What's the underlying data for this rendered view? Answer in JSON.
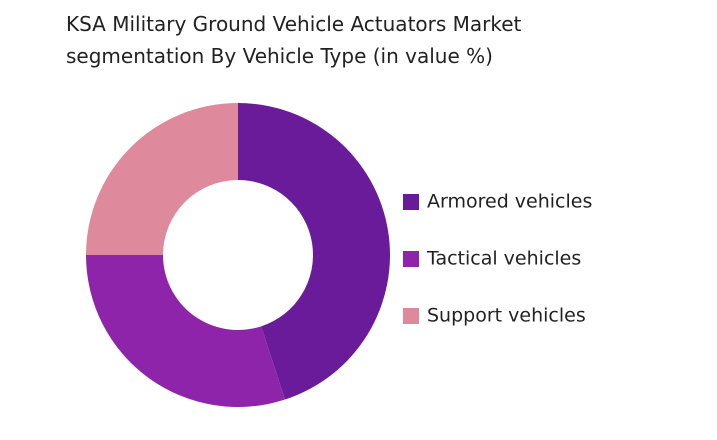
{
  "chart_data": {
    "type": "pie",
    "title": "KSA Military Ground Vehicle Actuators Market segmentation By Vehicle Type (in value %)",
    "categories": [
      "Armored vehicles",
      "Tactical vehicles",
      "Support vehicles"
    ],
    "values": [
      45,
      30,
      25
    ],
    "colors": [
      "#6a1b9a",
      "#8e24aa",
      "#de8a9c"
    ],
    "donut": true
  }
}
